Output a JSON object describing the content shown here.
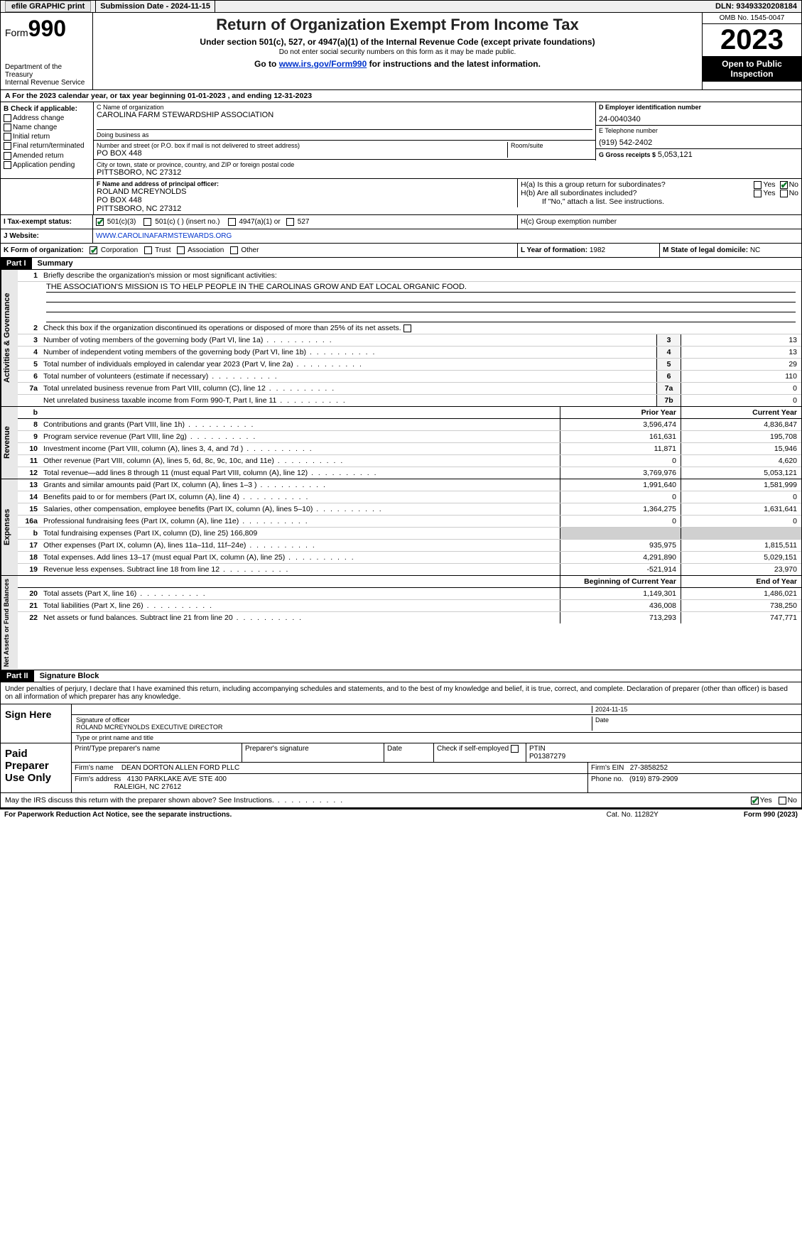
{
  "topbar": {
    "efile": "efile GRAPHIC print",
    "submission_label": "Submission Date - 2024-11-15",
    "dln_label": "DLN: 93493320208184"
  },
  "header": {
    "form_prefix": "Form",
    "form_num": "990",
    "dept": "Department of the Treasury",
    "irs": "Internal Revenue Service",
    "title": "Return of Organization Exempt From Income Tax",
    "sub1": "Under section 501(c), 527, or 4947(a)(1) of the Internal Revenue Code (except private foundations)",
    "sub2": "Do not enter social security numbers on this form as it may be made public.",
    "sub3_pre": "Go to ",
    "sub3_link": "www.irs.gov/Form990",
    "sub3_post": " for instructions and the latest information.",
    "omb": "OMB No. 1545-0047",
    "year": "2023",
    "pub1": "Open to Public",
    "pub2": "Inspection"
  },
  "rowA": "A For the 2023 calendar year, or tax year beginning 01-01-2023   , and ending 12-31-2023",
  "B": {
    "hdr": "B Check if applicable:",
    "opts": [
      "Address change",
      "Name change",
      "Initial return",
      "Final return/terminated",
      "Amended return",
      "Application pending"
    ]
  },
  "C": {
    "name_lbl": "C Name of organization",
    "name": "CAROLINA FARM STEWARDSHIP ASSOCIATION",
    "dba_lbl": "Doing business as",
    "dba": "",
    "addr_lbl": "Number and street (or P.O. box if mail is not delivered to street address)",
    "room_lbl": "Room/suite",
    "addr": "PO BOX 448",
    "city_lbl": "City or town, state or province, country, and ZIP or foreign postal code",
    "city": "PITTSBORO, NC  27312"
  },
  "D": {
    "lbl": "D Employer identification number",
    "val": "24-0040340"
  },
  "E": {
    "lbl": "E Telephone number",
    "val": "(919) 542-2402"
  },
  "G": {
    "lbl": "G Gross receipts $",
    "val": "5,053,121"
  },
  "F": {
    "lbl": "F  Name and address of principal officer:",
    "l1": "ROLAND MCREYNOLDS",
    "l2": "PO BOX 448",
    "l3": "PITTSBORO, NC  27312"
  },
  "H": {
    "a": "H(a)  Is this a group return for subordinates?",
    "b": "H(b)  Are all subordinates included?",
    "bnote": "If \"No,\" attach a list. See instructions.",
    "c": "H(c)  Group exemption number",
    "yes": "Yes",
    "no": "No"
  },
  "I": {
    "lbl": "I   Tax-exempt status:",
    "o1": "501(c)(3)",
    "o2": "501(c) (  ) (insert no.)",
    "o3": "4947(a)(1) or",
    "o4": "527"
  },
  "J": {
    "lbl": "J   Website:",
    "val": "WWW.CAROLINAFARMSTEWARDS.ORG"
  },
  "K": {
    "lbl": "K Form of organization:",
    "o1": "Corporation",
    "o2": "Trust",
    "o3": "Association",
    "o4": "Other"
  },
  "L": {
    "lbl": "L Year of formation:",
    "val": "1982"
  },
  "M": {
    "lbl": "M State of legal domicile:",
    "val": "NC"
  },
  "part1": {
    "bar": "Part I",
    "title": "Summary"
  },
  "summary": {
    "q1": "Briefly describe the organization's mission or most significant activities:",
    "mission": "THE ASSOCIATION'S MISSION IS TO HELP PEOPLE IN THE CAROLINAS GROW AND EAT LOCAL ORGANIC FOOD.",
    "q2": "Check this box       if the organization discontinued its operations or disposed of more than 25% of its net assets.",
    "rows_gov": [
      {
        "n": "3",
        "d": "Number of voting members of the governing body (Part VI, line 1a)",
        "c": "3",
        "v": "13"
      },
      {
        "n": "4",
        "d": "Number of independent voting members of the governing body (Part VI, line 1b)",
        "c": "4",
        "v": "13"
      },
      {
        "n": "5",
        "d": "Total number of individuals employed in calendar year 2023 (Part V, line 2a)",
        "c": "5",
        "v": "29"
      },
      {
        "n": "6",
        "d": "Total number of volunteers (estimate if necessary)",
        "c": "6",
        "v": "110"
      },
      {
        "n": "7a",
        "d": "Total unrelated business revenue from Part VIII, column (C), line 12",
        "c": "7a",
        "v": "0"
      },
      {
        "n": "",
        "d": "Net unrelated business taxable income from Form 990-T, Part I, line 11",
        "c": "7b",
        "v": "0"
      }
    ],
    "hdr_prior": "Prior Year",
    "hdr_curr": "Current Year",
    "rev": [
      {
        "n": "8",
        "d": "Contributions and grants (Part VIII, line 1h)",
        "p": "3,596,474",
        "c": "4,836,847"
      },
      {
        "n": "9",
        "d": "Program service revenue (Part VIII, line 2g)",
        "p": "161,631",
        "c": "195,708"
      },
      {
        "n": "10",
        "d": "Investment income (Part VIII, column (A), lines 3, 4, and 7d )",
        "p": "11,871",
        "c": "15,946"
      },
      {
        "n": "11",
        "d": "Other revenue (Part VIII, column (A), lines 5, 6d, 8c, 9c, 10c, and 11e)",
        "p": "0",
        "c": "4,620"
      },
      {
        "n": "12",
        "d": "Total revenue—add lines 8 through 11 (must equal Part VIII, column (A), line 12)",
        "p": "3,769,976",
        "c": "5,053,121"
      }
    ],
    "exp": [
      {
        "n": "13",
        "d": "Grants and similar amounts paid (Part IX, column (A), lines 1–3 )",
        "p": "1,991,640",
        "c": "1,581,999"
      },
      {
        "n": "14",
        "d": "Benefits paid to or for members (Part IX, column (A), line 4)",
        "p": "0",
        "c": "0"
      },
      {
        "n": "15",
        "d": "Salaries, other compensation, employee benefits (Part IX, column (A), lines 5–10)",
        "p": "1,364,275",
        "c": "1,631,641"
      },
      {
        "n": "16a",
        "d": "Professional fundraising fees (Part IX, column (A), line 11e)",
        "p": "0",
        "c": "0"
      },
      {
        "n": "b",
        "d": "Total fundraising expenses (Part IX, column (D), line 25) 166,809",
        "p": "",
        "c": "",
        "gray": true
      },
      {
        "n": "17",
        "d": "Other expenses (Part IX, column (A), lines 11a–11d, 11f–24e)",
        "p": "935,975",
        "c": "1,815,511"
      },
      {
        "n": "18",
        "d": "Total expenses. Add lines 13–17 (must equal Part IX, column (A), line 25)",
        "p": "4,291,890",
        "c": "5,029,151"
      },
      {
        "n": "19",
        "d": "Revenue less expenses. Subtract line 18 from line 12",
        "p": "-521,914",
        "c": "23,970"
      }
    ],
    "hdr_beg": "Beginning of Current Year",
    "hdr_end": "End of Year",
    "net": [
      {
        "n": "20",
        "d": "Total assets (Part X, line 16)",
        "p": "1,149,301",
        "c": "1,486,021"
      },
      {
        "n": "21",
        "d": "Total liabilities (Part X, line 26)",
        "p": "436,008",
        "c": "738,250"
      },
      {
        "n": "22",
        "d": "Net assets or fund balances. Subtract line 21 from line 20",
        "p": "713,293",
        "c": "747,771"
      }
    ],
    "tab_gov": "Activities & Governance",
    "tab_rev": "Revenue",
    "tab_exp": "Expenses",
    "tab_net": "Net Assets or Fund Balances"
  },
  "part2": {
    "bar": "Part II",
    "title": "Signature Block"
  },
  "penalty": "Under penalties of perjury, I declare that I have examined this return, including accompanying schedules and statements, and to the best of my knowledge and belief, it is true, correct, and complete. Declaration of preparer (other than officer) is based on all information of which preparer has any knowledge.",
  "sign": {
    "here": "Sign Here",
    "date": "2024-11-15",
    "sig_lbl": "Signature of officer",
    "name": "ROLAND MCREYNOLDS  EXECUTIVE DIRECTOR",
    "name_lbl": "Type or print name and title",
    "date_lbl": "Date"
  },
  "paid": {
    "lbl": "Paid Preparer Use Only",
    "h1": "Print/Type preparer's name",
    "h2": "Preparer's signature",
    "h3": "Date",
    "h4": "Check        if self-employed",
    "h5": "PTIN",
    "ptin": "P01387279",
    "firm_lbl": "Firm's name",
    "firm": "DEAN DORTON ALLEN FORD PLLC",
    "ein_lbl": "Firm's EIN",
    "ein": "27-3858252",
    "addr_lbl": "Firm's address",
    "addr1": "4130 PARKLAKE AVE STE 400",
    "addr2": "RALEIGH, NC  27612",
    "phone_lbl": "Phone no.",
    "phone": "(919) 879-2909"
  },
  "discuss": {
    "q": "May the IRS discuss this return with the preparer shown above? See Instructions.",
    "yes": "Yes",
    "no": "No"
  },
  "foot": {
    "l": "For Paperwork Reduction Act Notice, see the separate instructions.",
    "c": "Cat. No. 11282Y",
    "r": "Form 990 (2023)"
  },
  "colors": {
    "link": "#0033cc",
    "check": "#0a7a2a"
  }
}
